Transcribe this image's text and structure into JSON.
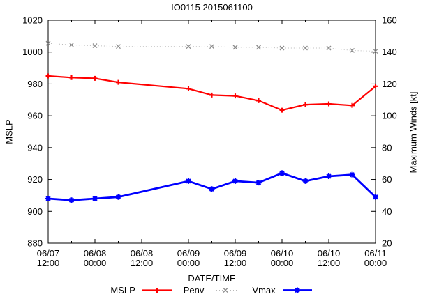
{
  "window": {
    "background": "#ffffff",
    "text_color": "#000000"
  },
  "chart_data": {
    "type": "line",
    "title": "IO0115 2015061100",
    "xlabel": "DATE/TIME",
    "ylabel": "MSLP",
    "y2label": "Maximum Winds [kt]",
    "grid": "off",
    "legend_position": "bottom-center",
    "x_range_hours": [
      0,
      84
    ],
    "x_hours": [
      0,
      6,
      12,
      18,
      36,
      42,
      48,
      54,
      60,
      66,
      72,
      78,
      84
    ],
    "x_major_ticks": [
      {
        "hour": 0,
        "date": "06/07",
        "time": "12:00"
      },
      {
        "hour": 12,
        "date": "06/08",
        "time": "00:00"
      },
      {
        "hour": 24,
        "date": "06/08",
        "time": "12:00"
      },
      {
        "hour": 36,
        "date": "06/09",
        "time": "00:00"
      },
      {
        "hour": 48,
        "date": "06/09",
        "time": "12:00"
      },
      {
        "hour": 60,
        "date": "06/10",
        "time": "00:00"
      },
      {
        "hour": 72,
        "date": "06/10",
        "time": "12:00"
      },
      {
        "hour": 84,
        "date": "06/11",
        "time": "00:00"
      }
    ],
    "x_minor_hours": [
      6,
      18,
      30,
      42,
      54,
      66,
      78
    ],
    "y_axis": {
      "min": 880,
      "max": 1020,
      "tick_step": 20,
      "ticks": [
        880,
        900,
        920,
        940,
        960,
        980,
        1000,
        1020
      ]
    },
    "y2_axis": {
      "min": 20,
      "max": 160,
      "tick_step": 20,
      "ticks": [
        20,
        40,
        60,
        80,
        100,
        120,
        140,
        160
      ]
    },
    "series": [
      {
        "name": "MSLP",
        "axis": "y1",
        "color": "#ff0000",
        "marker_color": "#ff0000",
        "marker": "plus",
        "line": "solid",
        "values": [
          985,
          984,
          983.5,
          981,
          977,
          973,
          972.5,
          969.5,
          963.5,
          967,
          967.5,
          966.5,
          978.5
        ]
      },
      {
        "name": "Penv",
        "axis": "y1",
        "color": "#b8b8b8",
        "marker_color": "#8c8c8c",
        "marker": "cross",
        "line": "dotted",
        "values": [
          1005.5,
          1004.5,
          1004,
          1003.5,
          1003.5,
          1003.5,
          1003,
          1003,
          1002.5,
          1002.5,
          1002.5,
          1001,
          1000.5
        ]
      },
      {
        "name": "Vmax",
        "axis": "y2",
        "color": "#0000ff",
        "marker_color": "#0000ff",
        "marker": "star",
        "line": "solid",
        "values": [
          48,
          47,
          48,
          49,
          59,
          54,
          59,
          58,
          64,
          59,
          62,
          63,
          49
        ]
      }
    ]
  }
}
